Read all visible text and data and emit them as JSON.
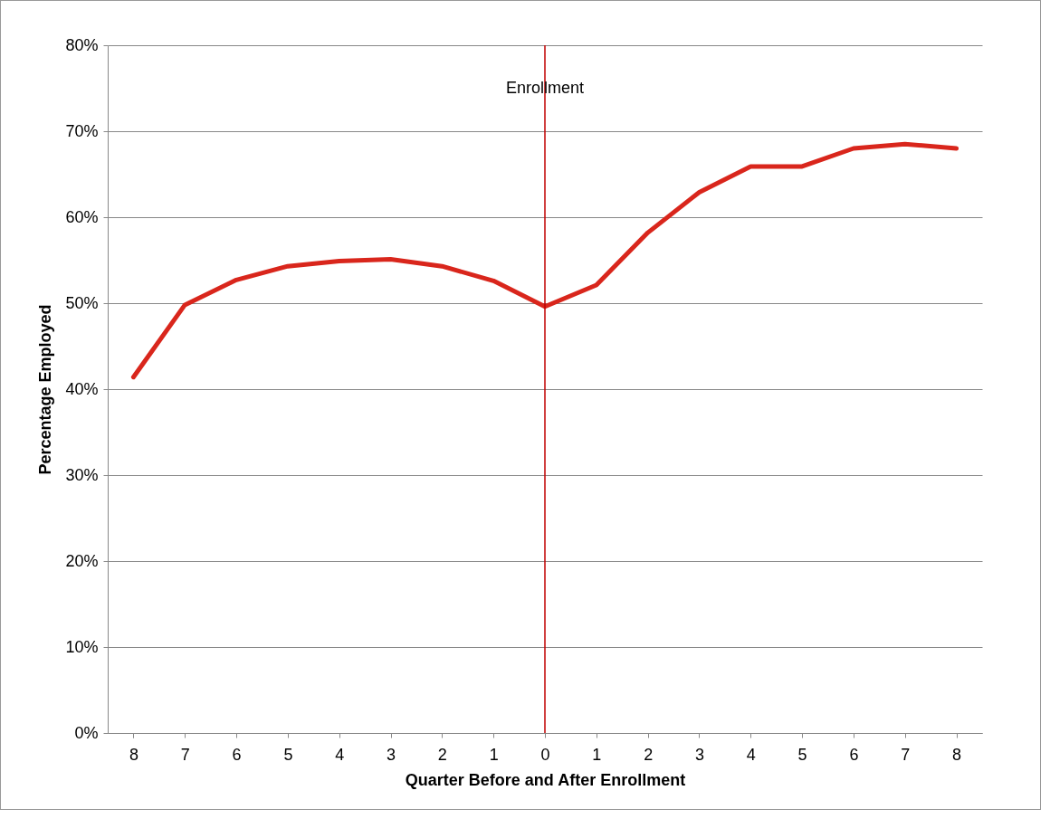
{
  "chart_data": {
    "type": "line",
    "xlabel": "Quarter Before and After Enrollment",
    "ylabel": "Percentage Employed",
    "categories": [
      "8",
      "7",
      "6",
      "5",
      "4",
      "3",
      "2",
      "1",
      "0",
      "1",
      "2",
      "3",
      "4",
      "5",
      "6",
      "7",
      "8"
    ],
    "series": [
      {
        "color": "#d9261c",
        "values": [
          41.4,
          49.8,
          52.7,
          54.3,
          54.9,
          55.1,
          54.3,
          52.6,
          49.6,
          52.1,
          58.2,
          62.9,
          65.9,
          65.9,
          68.0,
          68.5,
          68.0
        ]
      }
    ],
    "ylim": [
      0,
      80
    ],
    "yticks": [
      {
        "value": 0,
        "label": "0%"
      },
      {
        "value": 10,
        "label": "10%"
      },
      {
        "value": 20,
        "label": "20%"
      },
      {
        "value": 30,
        "label": "30%"
      },
      {
        "value": 40,
        "label": "40%"
      },
      {
        "value": 50,
        "label": "50%"
      },
      {
        "value": 60,
        "label": "60%"
      },
      {
        "value": 70,
        "label": "70%"
      },
      {
        "value": 80,
        "label": "80%"
      }
    ],
    "grid": "y",
    "marker": "none",
    "line_style": "solid",
    "ref_lines": [
      {
        "axis": "x",
        "value": "0",
        "label": "Enrollment",
        "color": "#c00000"
      }
    ]
  }
}
